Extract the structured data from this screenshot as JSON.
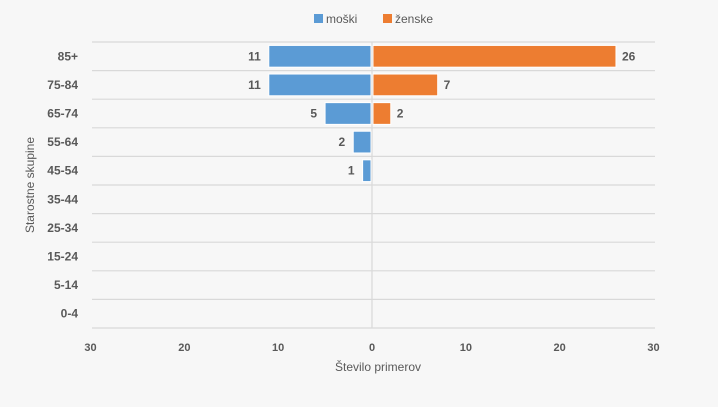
{
  "chart_data": {
    "type": "bar",
    "orientation": "horizontal",
    "categories": [
      "85+",
      "75-84",
      "65-74",
      "55-64",
      "45-54",
      "35-44",
      "25-34",
      "15-24",
      "5-14",
      "0-4"
    ],
    "series": [
      {
        "name": "moški",
        "values": [
          11,
          11,
          5,
          2,
          1,
          0,
          0,
          0,
          0,
          0
        ],
        "color": "#5b9bd5",
        "side": "left"
      },
      {
        "name": "ženske",
        "values": [
          26,
          7,
          2,
          0,
          0,
          0,
          0,
          0,
          0,
          0
        ],
        "color": "#ed7d31",
        "side": "right"
      }
    ],
    "xlabel": "Število primerov",
    "ylabel": "Starostne skupine",
    "xlim": [
      -30,
      30
    ],
    "xticks": [
      -30,
      -20,
      -10,
      0,
      10,
      20,
      30
    ],
    "xtick_labels": [
      "30",
      "20",
      "10",
      "0",
      "10",
      "20",
      "30"
    ],
    "legend_position": "top-center",
    "grid": true
  }
}
